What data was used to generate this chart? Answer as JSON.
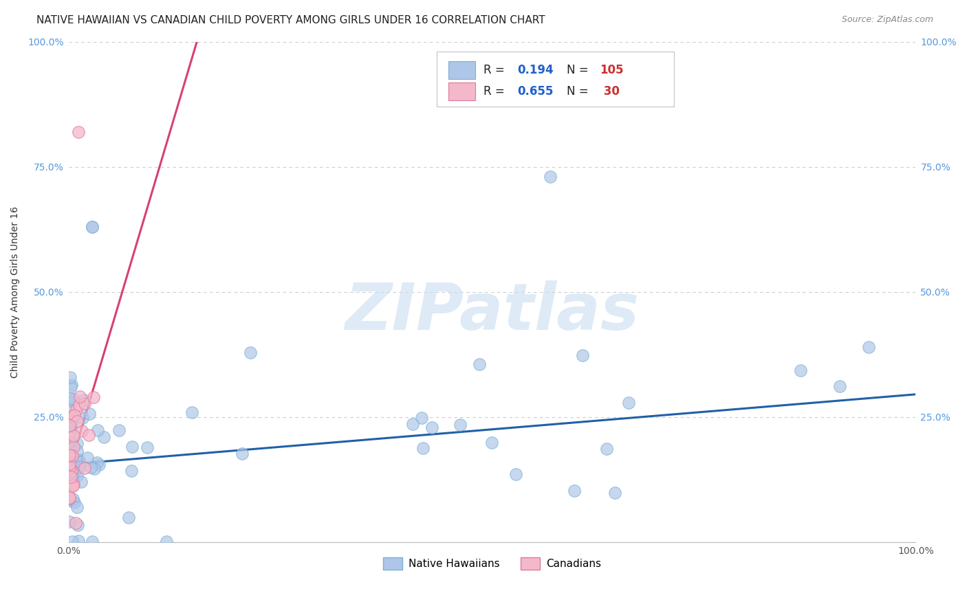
{
  "title": "NATIVE HAWAIIAN VS CANADIAN CHILD POVERTY AMONG GIRLS UNDER 16 CORRELATION CHART",
  "source": "Source: ZipAtlas.com",
  "ylabel": "Child Poverty Among Girls Under 16",
  "xlim": [
    0,
    1
  ],
  "ylim": [
    0,
    1
  ],
  "x_tick_labels": [
    "0.0%",
    "100.0%"
  ],
  "y_tick_positions": [
    0,
    0.25,
    0.5,
    0.75,
    1.0
  ],
  "y_tick_labels": [
    "",
    "25.0%",
    "50.0%",
    "75.0%",
    "100.0%"
  ],
  "watermark_text": "ZIPatlas",
  "background_color": "#ffffff",
  "grid_color": "#cccccc",
  "nh_color": "#aec6e8",
  "nh_edge_color": "#7aafd4",
  "ca_color": "#f4b8cb",
  "ca_edge_color": "#e07898",
  "nh_line_color": "#2060a8",
  "ca_line_color": "#d84070",
  "tick_color": "#5599dd",
  "nh_R": 0.194,
  "nh_N": 105,
  "ca_R": 0.655,
  "ca_N": 30,
  "nh_line_x0": 0.0,
  "nh_line_x1": 1.0,
  "nh_line_y0": 0.155,
  "nh_line_y1": 0.295,
  "ca_line_x0": 0.0,
  "ca_line_x1": 0.155,
  "ca_line_y0": 0.14,
  "ca_line_y1": 1.02
}
